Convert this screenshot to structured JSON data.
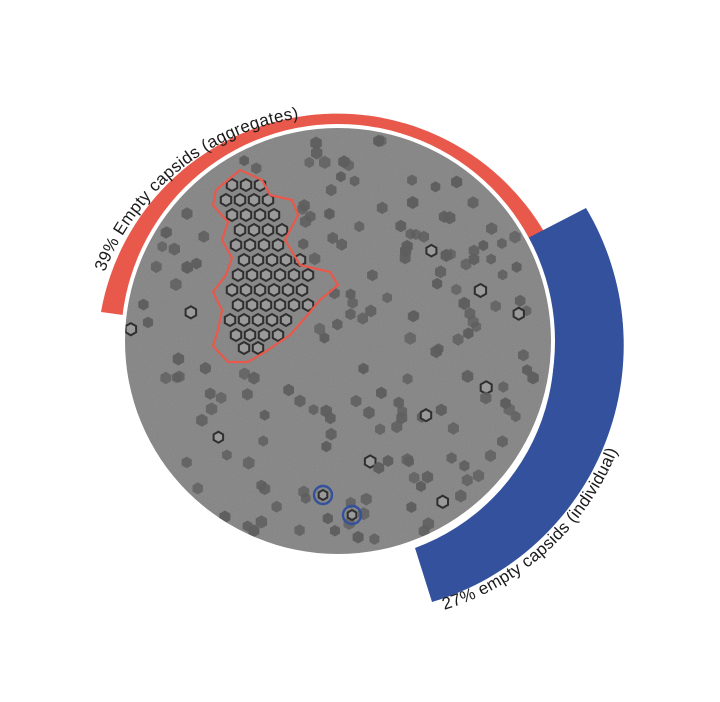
{
  "labels": {
    "aggregates": "39% Empty capsids (aggregates)",
    "individual": "27% empty capsids (individual)"
  },
  "values": {
    "aggregates_percent": 39,
    "individual_percent": 27
  },
  "colors": {
    "aggregates_arc": "#E8594B",
    "individual_arc": "#33519C",
    "micrograph_bg": "#8f8f8f",
    "particle": "#5e5e5e",
    "empty_capsid_ring": "#2f2f2f",
    "aggregate_outline": "#E8594B",
    "individual_marker": "#33519C",
    "label_text": "#1a1a1a"
  },
  "icons": {
    "micrograph": "cryo-em-micrograph-icon"
  }
}
